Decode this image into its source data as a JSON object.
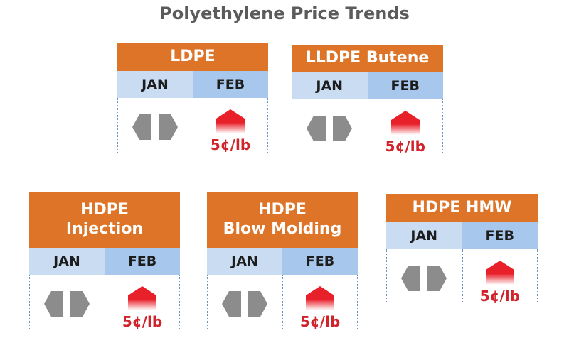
{
  "title": "Polyethylene Price Trends",
  "colors": {
    "header": "#dd7428",
    "jan": "#c9dcf1",
    "feb": "#a8c7ec",
    "neutral": "#8c8c8c",
    "up": "#e8202a",
    "change_text": "#d0232b"
  },
  "chart_data": {
    "type": "table",
    "title": "Polyethylene Price Trends",
    "columns": [
      "JAN",
      "FEB"
    ],
    "unit": "¢/lb",
    "cards": [
      {
        "lines": [
          "LDPE"
        ],
        "jan": {
          "trend": "flat"
        },
        "feb": {
          "trend": "up",
          "change": 5,
          "label": "5¢/lb"
        }
      },
      {
        "lines": [
          "LLDPE Butene"
        ],
        "jan": {
          "trend": "flat"
        },
        "feb": {
          "trend": "up",
          "change": 5,
          "label": "5¢/lb"
        }
      },
      {
        "lines": [
          "HDPE",
          "Injection"
        ],
        "jan": {
          "trend": "flat"
        },
        "feb": {
          "trend": "up",
          "change": 5,
          "label": "5¢/lb"
        }
      },
      {
        "lines": [
          "HDPE",
          "Blow Molding"
        ],
        "jan": {
          "trend": "flat"
        },
        "feb": {
          "trend": "up",
          "change": 5,
          "label": "5¢/lb"
        }
      },
      {
        "lines": [
          "HDPE HMW"
        ],
        "jan": {
          "trend": "flat"
        },
        "feb": {
          "trend": "up",
          "change": 5,
          "label": "5¢/lb"
        }
      }
    ]
  }
}
